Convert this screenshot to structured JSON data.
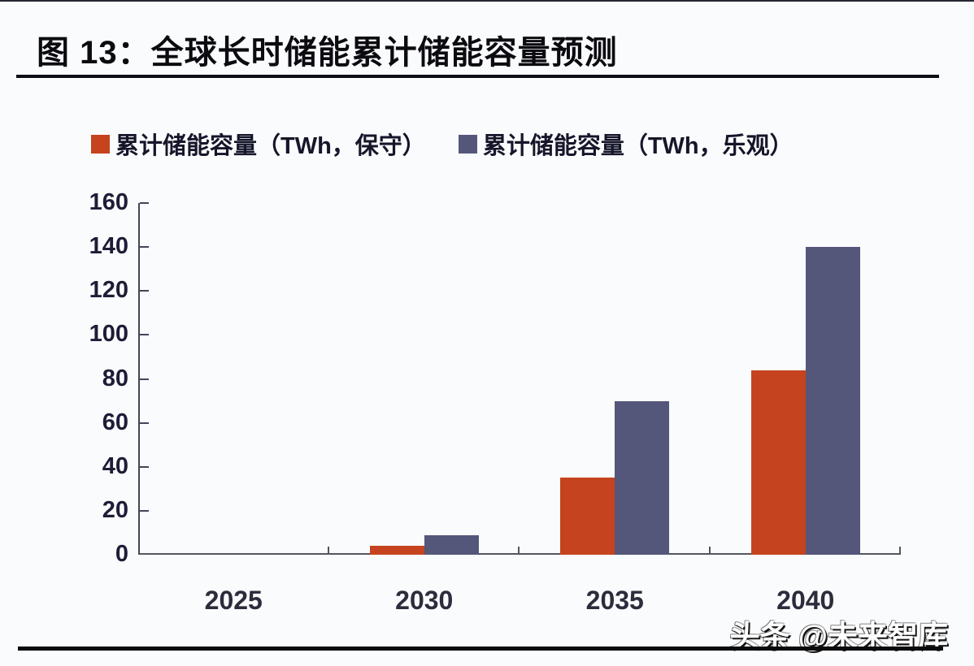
{
  "page": {
    "title": "图 13：全球长时储能累计储能容量预测",
    "watermark": "头条 @未来智库"
  },
  "colors": {
    "conservative_red": "#c5431e",
    "optimistic_blue": "#54577a",
    "axis": "#44445a",
    "background": "#fafbfd",
    "title_rule": "#0e0e14"
  },
  "chart_data": {
    "type": "bar",
    "title": "全球长时储能累计储能容量预测",
    "categories": [
      "2025",
      "2030",
      "2035",
      "2040"
    ],
    "series": [
      {
        "name": "累计储能容量（TWh，保守）",
        "color": "#c5431e",
        "values": [
          0,
          4,
          35,
          84
        ]
      },
      {
        "name": "累计储能容量（TWh，乐观）",
        "color": "#54577a",
        "values": [
          0,
          9,
          70,
          140
        ]
      }
    ],
    "xlabel": "",
    "ylabel": "",
    "ylim": [
      0,
      160
    ],
    "yticks": [
      0,
      20,
      40,
      60,
      80,
      100,
      120,
      140,
      160
    ],
    "legend_position": "top",
    "grid": false
  }
}
